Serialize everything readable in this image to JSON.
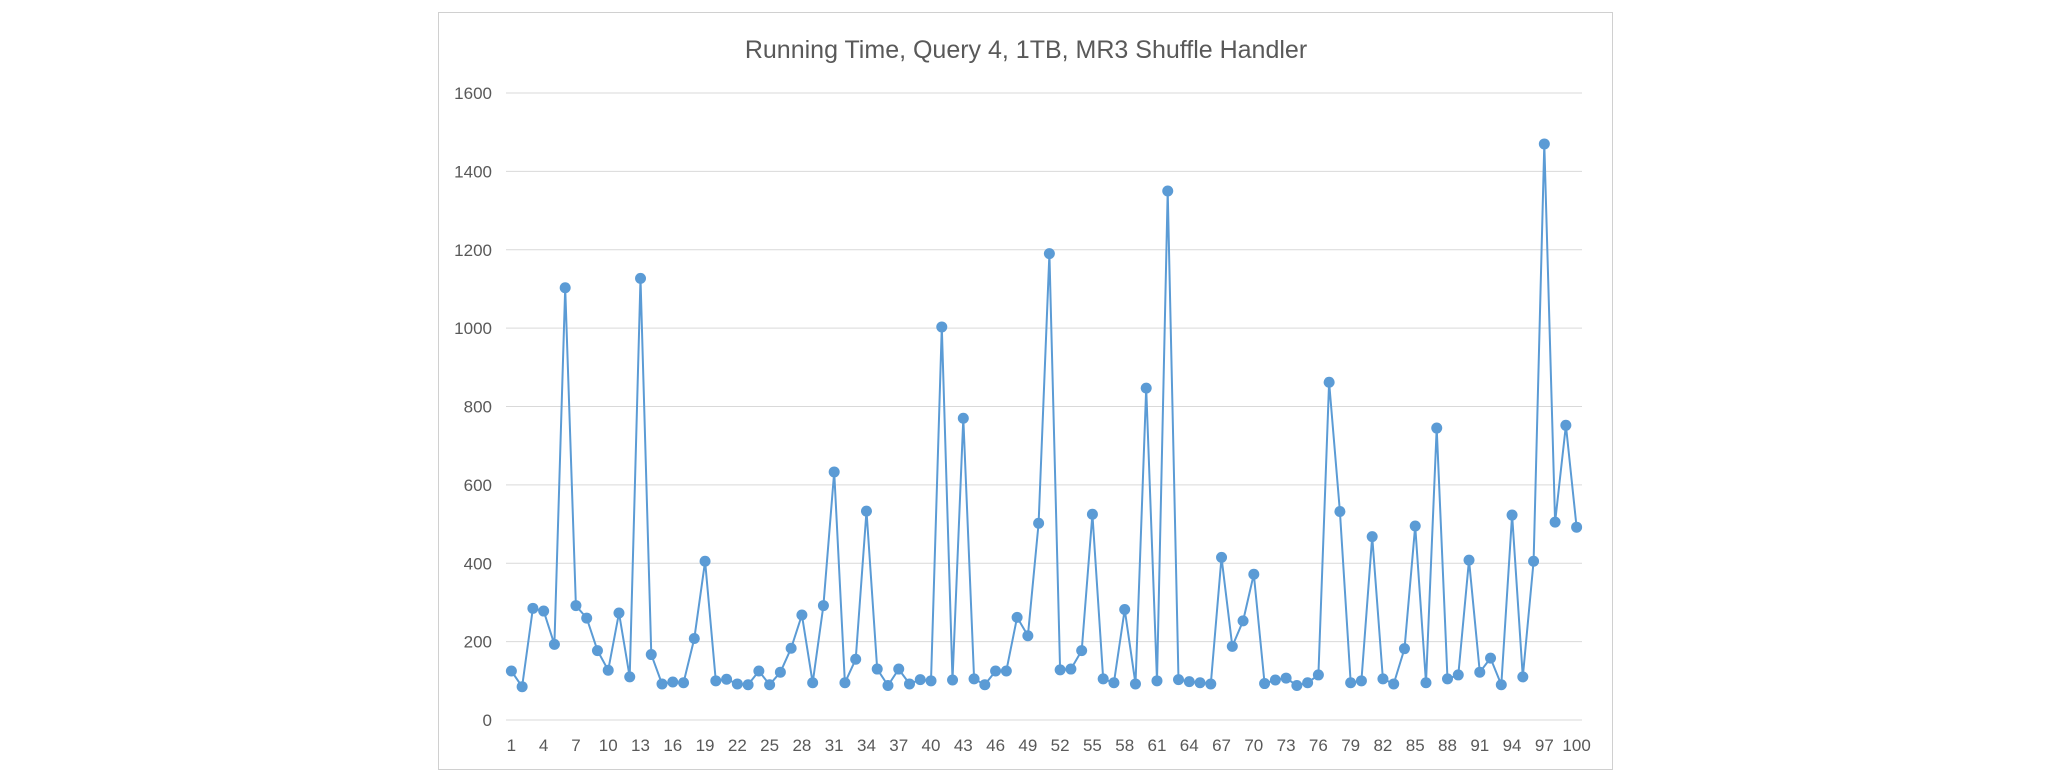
{
  "chart_data": {
    "type": "line",
    "title": "Running Time, Query 4, 1TB, MR3 Shuffle Handler",
    "xlabel": "",
    "ylabel": "",
    "ylim": [
      0,
      1600
    ],
    "yticks": [
      0,
      200,
      400,
      600,
      800,
      1000,
      1200,
      1400,
      1600
    ],
    "xtick_labels": [
      "1",
      "4",
      "7",
      "10",
      "13",
      "16",
      "19",
      "22",
      "25",
      "28",
      "31",
      "34",
      "37",
      "40",
      "43",
      "46",
      "49",
      "52",
      "55",
      "58",
      "61",
      "64",
      "67",
      "70",
      "73",
      "76",
      "79",
      "82",
      "85",
      "88",
      "91",
      "94",
      "97",
      "100"
    ],
    "grid": "horizontal",
    "legend": "none",
    "color": "#5b9bd5",
    "x": [
      1,
      2,
      3,
      4,
      5,
      6,
      7,
      8,
      9,
      10,
      11,
      12,
      13,
      14,
      15,
      16,
      17,
      18,
      19,
      20,
      21,
      22,
      23,
      24,
      25,
      26,
      27,
      28,
      29,
      30,
      31,
      32,
      33,
      34,
      35,
      36,
      37,
      38,
      39,
      40,
      41,
      42,
      43,
      44,
      45,
      46,
      47,
      48,
      49,
      50,
      51,
      52,
      53,
      54,
      55,
      56,
      57,
      58,
      59,
      60,
      61,
      62,
      63,
      64,
      65,
      66,
      67,
      68,
      69,
      70,
      71,
      72,
      73,
      74,
      75,
      76,
      77,
      78,
      79,
      80,
      81,
      82,
      83,
      84,
      85,
      86,
      87,
      88,
      89,
      90,
      91,
      92,
      93,
      94,
      95,
      96,
      97,
      98,
      99,
      100
    ],
    "series": [
      {
        "values": [
          125,
          85,
          285,
          278,
          193,
          1103,
          292,
          260,
          177,
          127,
          273,
          110,
          1127,
          167,
          92,
          97,
          95,
          208,
          405,
          100,
          104,
          92,
          90,
          125,
          90,
          122,
          183,
          268,
          95,
          292,
          633,
          95,
          155,
          533,
          130,
          88,
          130,
          92,
          103,
          100,
          1003,
          102,
          770,
          105,
          90,
          125,
          125,
          262,
          215,
          502,
          1190,
          128,
          130,
          177,
          525,
          105,
          95,
          282,
          92,
          847,
          100,
          1350,
          103,
          98,
          95,
          92,
          415,
          188,
          253,
          372,
          93,
          102,
          107,
          88,
          95,
          115,
          862,
          532,
          95,
          100,
          468,
          105,
          92,
          182,
          495,
          95,
          745,
          105,
          115,
          408,
          122,
          158,
          90,
          523,
          110,
          405,
          1470,
          505,
          752,
          492
        ]
      }
    ]
  }
}
